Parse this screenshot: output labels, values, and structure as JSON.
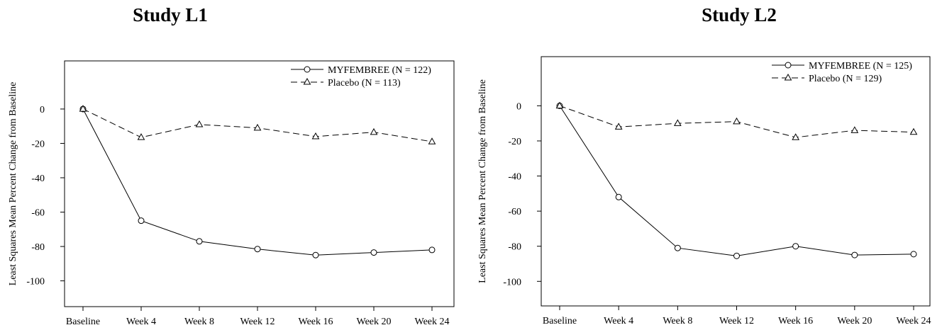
{
  "chart_data": [
    {
      "type": "line",
      "title": "Study L1",
      "xlabel": "",
      "ylabel": "Least Squares Mean Percent Change from Baseline",
      "categories": [
        "Baseline",
        "Week 4",
        "Week 8",
        "Week 12",
        "Week 16",
        "Week 20",
        "Week 24"
      ],
      "ylim": [
        -115,
        28
      ],
      "yticks": [
        0,
        -20,
        -40,
        -60,
        -80,
        -100
      ],
      "grid": false,
      "legend_position": "top-right",
      "series": [
        {
          "name": "MYFEMBREE (N = 122)",
          "marker": "circle",
          "line_style": "solid",
          "values": [
            0,
            -65,
            -77,
            -81.5,
            -85,
            -83.5,
            -82
          ]
        },
        {
          "name": "Placebo (N = 113)",
          "marker": "triangle",
          "line_style": "dashed",
          "values": [
            0,
            -16.5,
            -9,
            -11,
            -16,
            -13.5,
            -19
          ]
        }
      ]
    },
    {
      "type": "line",
      "title": "Study L2",
      "xlabel": "",
      "ylabel": "Least Squares Mean Percent Change from Baseline",
      "categories": [
        "Baseline",
        "Week 4",
        "Week 8",
        "Week 12",
        "Week 16",
        "Week 20",
        "Week 24"
      ],
      "ylim": [
        -114,
        28
      ],
      "yticks": [
        0,
        -20,
        -40,
        -60,
        -80,
        -100
      ],
      "grid": false,
      "legend_position": "top-right",
      "series": [
        {
          "name": "MYFEMBREE (N = 125)",
          "marker": "circle",
          "line_style": "solid",
          "values": [
            0,
            -52,
            -81,
            -85.5,
            -80,
            -85,
            -84.5
          ]
        },
        {
          "name": "Placebo (N = 129)",
          "marker": "triangle",
          "line_style": "dashed",
          "values": [
            0,
            -12,
            -10,
            -9,
            -18,
            -14,
            -15
          ]
        }
      ]
    }
  ]
}
